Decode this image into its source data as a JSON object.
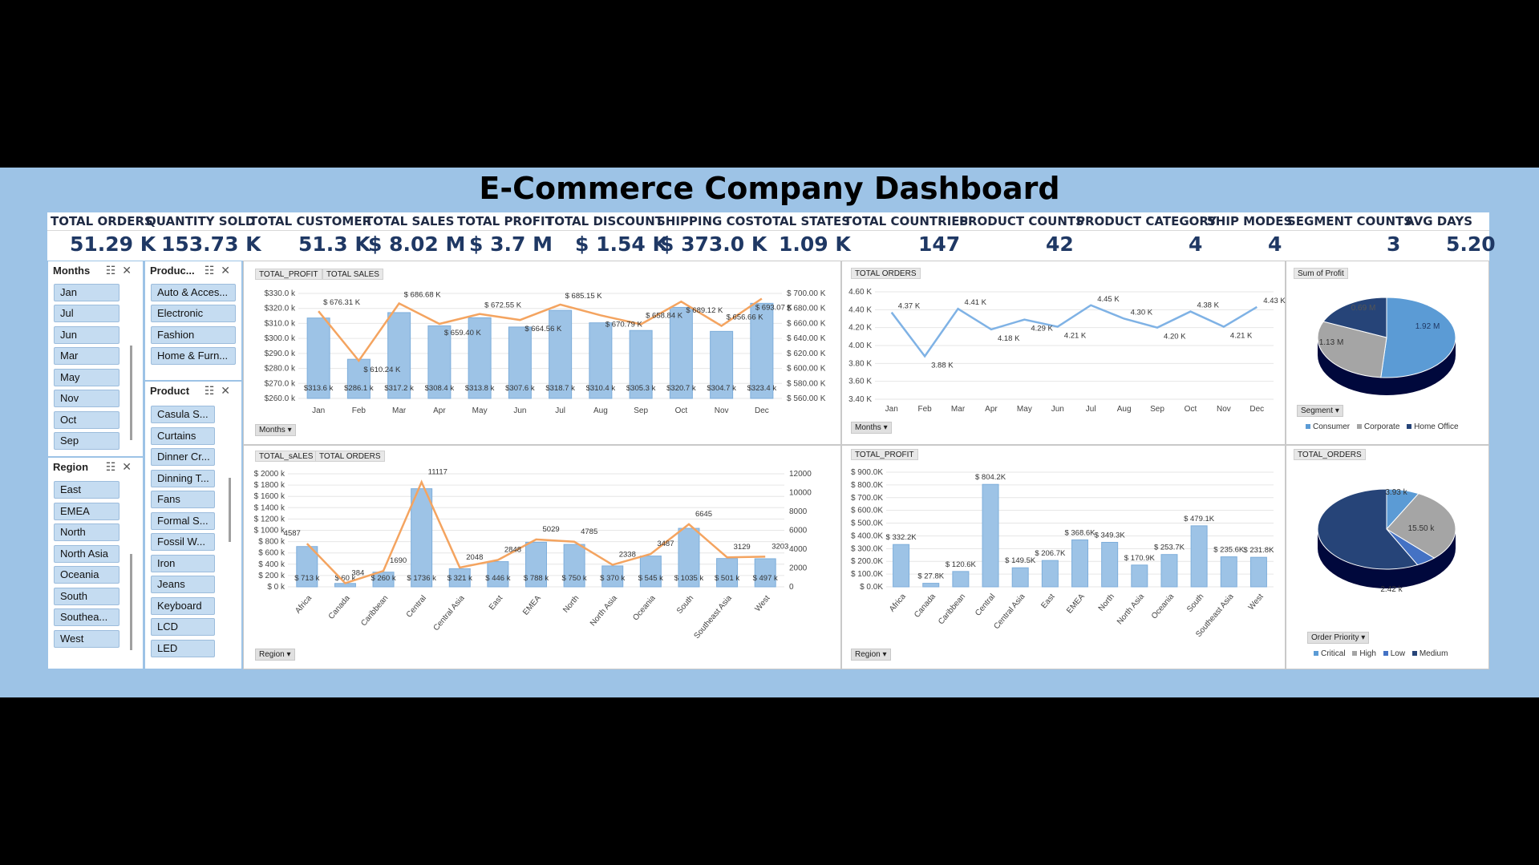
{
  "title": "E-Commerce Company Dashboard",
  "kpis": [
    {
      "label": "TOTAL ORDERS",
      "value": "51.29 K"
    },
    {
      "label": "QUANTITY SOLD",
      "value": "153.73 K"
    },
    {
      "label": "TOTAL CUSTOMER",
      "value": "51.3 K"
    },
    {
      "label": "TOTAL SALES",
      "value": "$ 8.02 M"
    },
    {
      "label": "TOTAL PROFIT",
      "value": "$ 3.7 M"
    },
    {
      "label": "TOTAL DISCOUNT",
      "value": "$ 1.54 K"
    },
    {
      "label": "SHIPPING COST",
      "value": "$ 373.0 K"
    },
    {
      "label": "TOTAL STATES",
      "value": "1.09 K"
    },
    {
      "label": "TOTAL COUNTRIES",
      "value": "147"
    },
    {
      "label": "PRODUCT COUNTS",
      "value": "42"
    },
    {
      "label": "PRODUCT CATEGORY",
      "value": "4"
    },
    {
      "label": "SHIP MODES",
      "value": "4"
    },
    {
      "label": "SEGMENT COUNTS",
      "value": "3"
    },
    {
      "label": "AVG DAYS",
      "value": "5.20"
    }
  ],
  "slicers": {
    "months": {
      "title": "Months",
      "items": [
        "Jan",
        "Jul",
        "Jun",
        "Mar",
        "May",
        "Nov",
        "Oct",
        "Sep"
      ]
    },
    "region": {
      "title": "Region",
      "items": [
        "East",
        "EMEA",
        "North",
        "North Asia",
        "Oceania",
        "South",
        "Southea...",
        "West"
      ]
    },
    "product_category": {
      "title": "Produc...",
      "items": [
        "Auto & Acces...",
        "Electronic",
        "Fashion",
        "Home & Furn..."
      ]
    },
    "product": {
      "title": "Product",
      "items": [
        "Casula S...",
        "Curtains",
        "Dinner Cr...",
        "Dinning T...",
        "Fans",
        "Formal S...",
        "Fossil W...",
        "Iron",
        "Jeans",
        "Keyboard",
        "LCD",
        "LED"
      ]
    }
  },
  "chart_data": [
    {
      "type": "bar",
      "field_buttons": [
        "TOTAL_PROFIT",
        "TOTAL SALES"
      ],
      "axis_button": "Months",
      "categories": [
        "Jan",
        "Feb",
        "Mar",
        "Apr",
        "May",
        "Jun",
        "Jul",
        "Aug",
        "Sep",
        "Oct",
        "Nov",
        "Dec"
      ],
      "series": [
        {
          "name": "TOTAL_PROFIT",
          "type": "bar",
          "values": [
            313.6,
            286.1,
            317.2,
            308.4,
            313.8,
            307.6,
            318.7,
            310.4,
            305.3,
            320.7,
            304.7,
            323.4
          ],
          "labels": [
            "$313.6 k",
            "$286.1 k",
            "$317.2 k",
            "$308.4 k",
            "$313.8 k",
            "$307.6 k",
            "$318.7 k",
            "$310.4 k",
            "$305.3 k",
            "$320.7 k",
            "$304.7 k",
            "$323.4 k"
          ]
        },
        {
          "name": "TOTAL SALES",
          "type": "line",
          "values": [
            676.31,
            610.24,
            686.68,
            659.4,
            672.55,
            664.56,
            685.15,
            670.79,
            658.84,
            689.12,
            656.66,
            693.07
          ],
          "labels": [
            "$ 676.31 K",
            "$ 610.24 K",
            "$ 686.68 K",
            "$ 659.40 K",
            "$ 672.55 K",
            "$ 664.56 K",
            "$ 685.15 K",
            "$ 670.79 K",
            "$ 658.84 K",
            "$ 689.12 K",
            "$ 656.66 K",
            "$ 693.07 K"
          ]
        }
      ],
      "ylim": [
        260,
        330
      ],
      "yticks": [
        "$260.0 k",
        "$270.0 k",
        "$280.0 k",
        "$290.0 k",
        "$300.0 k",
        "$310.0 k",
        "$320.0 k",
        "$330.0 k"
      ],
      "y2lim": [
        560,
        700
      ],
      "y2ticks": [
        "$ 560.00 K",
        "$ 580.00 K",
        "$ 600.00 K",
        "$ 620.00 K",
        "$ 640.00 K",
        "$ 660.00 K",
        "$ 680.00 K",
        "$ 700.00 K"
      ]
    },
    {
      "type": "line",
      "field_buttons": [
        "TOTAL ORDERS"
      ],
      "axis_button": "Months",
      "categories": [
        "Jan",
        "Feb",
        "Mar",
        "Apr",
        "May",
        "Jun",
        "Jul",
        "Aug",
        "Sep",
        "Oct",
        "Nov",
        "Dec"
      ],
      "series": [
        {
          "name": "TOTAL ORDERS",
          "values": [
            4.37,
            3.88,
            4.41,
            4.18,
            4.29,
            4.21,
            4.45,
            4.3,
            4.2,
            4.38,
            4.21,
            4.43
          ],
          "labels": [
            "4.37 K",
            "3.88 K",
            "4.41 K",
            "4.18 K",
            "4.29 K",
            "4.21 K",
            "4.45 K",
            "4.30 K",
            "4.20 K",
            "4.38 K",
            "4.21 K",
            "4.43 K"
          ]
        }
      ],
      "ylim": [
        3.4,
        4.6
      ],
      "yticks": [
        "3.40 K",
        "3.60 K",
        "3.80 K",
        "4.00 K",
        "4.20 K",
        "4.40 K",
        "4.60 K"
      ]
    },
    {
      "type": "pie",
      "field_buttons": [
        "Sum of Profit"
      ],
      "axis_button": "Segment",
      "categories": [
        "Consumer",
        "Corporate",
        "Home Office"
      ],
      "values": [
        1.92,
        1.13,
        0.69
      ],
      "labels": [
        "1.92 M",
        "1.13 M",
        "0.69 M"
      ],
      "colors": [
        "#5b9bd5",
        "#a5a5a5",
        "#264478"
      ]
    },
    {
      "type": "bar",
      "field_buttons": [
        "TOTAL_sALES",
        "TOTAL ORDERS"
      ],
      "axis_button": "Region",
      "categories": [
        "Africa",
        "Canada",
        "Caribbean",
        "Central",
        "Central Asia",
        "East",
        "EMEA",
        "North",
        "North Asia",
        "Oceania",
        "South",
        "Southeast Asia",
        "West"
      ],
      "series": [
        {
          "name": "TOTAL_sALES",
          "type": "bar",
          "values": [
            713,
            60,
            260,
            1736,
            321,
            446,
            788,
            750,
            370,
            545,
            1035,
            501,
            497
          ],
          "labels": [
            "$ 713 k",
            "$ 60 k",
            "$ 260 k",
            "$ 1736 k",
            "$ 321 k",
            "$ 446 k",
            "$ 788 k",
            "$ 750 k",
            "$ 370 k",
            "$ 545 k",
            "$ 1035 k",
            "$ 501 k",
            "$ 497 k"
          ]
        },
        {
          "name": "TOTAL ORDERS",
          "type": "line",
          "values": [
            4587,
            384,
            1690,
            11117,
            2048,
            2848,
            5029,
            4785,
            2338,
            3487,
            6645,
            3129,
            3203
          ],
          "labels": [
            "4587",
            "384",
            "1690",
            "11117",
            "2048",
            "2848",
            "5029",
            "4785",
            "2338",
            "3487",
            "6645",
            "3129",
            "3203"
          ]
        }
      ],
      "ylim": [
        0,
        2000
      ],
      "yticks": [
        "$ 0 k",
        "$ 200 k",
        "$ 400 k",
        "$ 600 k",
        "$ 800 k",
        "$ 1000 k",
        "$ 1200 k",
        "$ 1400 k",
        "$ 1600 k",
        "$ 1800 k",
        "$ 2000 k"
      ],
      "y2lim": [
        0,
        12000
      ],
      "y2ticks": [
        "0",
        "2000",
        "4000",
        "6000",
        "8000",
        "10000",
        "12000"
      ]
    },
    {
      "type": "bar",
      "field_buttons": [
        "TOTAL_PROFIT"
      ],
      "axis_button": "Region",
      "categories": [
        "Africa",
        "Canada",
        "Caribbean",
        "Central",
        "Central Asia",
        "East",
        "EMEA",
        "North",
        "North Asia",
        "Oceania",
        "South",
        "Southeast Asia",
        "West"
      ],
      "series": [
        {
          "name": "TOTAL_PROFIT",
          "values": [
            332.2,
            27.8,
            120.6,
            804.2,
            149.5,
            206.7,
            368.6,
            349.3,
            170.9,
            253.7,
            479.1,
            235.6,
            231.8
          ],
          "labels": [
            "$ 332.2K",
            "$ 27.8K",
            "$ 120.6K",
            "$ 804.2K",
            "$ 149.5K",
            "$ 206.7K",
            "$ 368.6K",
            "$ 349.3K",
            "$ 170.9K",
            "$ 253.7K",
            "$ 479.1K",
            "$ 235.6K",
            "$ 231.8K"
          ]
        }
      ],
      "ylim": [
        0,
        900
      ],
      "yticks": [
        "$ 0.0K",
        "$ 100.0K",
        "$ 200.0K",
        "$ 300.0K",
        "$ 400.0K",
        "$ 500.0K",
        "$ 600.0K",
        "$ 700.0K",
        "$ 800.0K",
        "$ 900.0K"
      ]
    },
    {
      "type": "pie",
      "field_buttons": [
        "TOTAL_ORDERS"
      ],
      "axis_button": "Order Priority",
      "categories": [
        "Critical",
        "High",
        "Low",
        "Medium"
      ],
      "values": [
        3.93,
        15.5,
        2.42,
        29.44
      ],
      "labels": [
        "3.93 k",
        "15.50 k",
        "2.42 k",
        ""
      ],
      "colors": [
        "#5b9bd5",
        "#a5a5a5",
        "#4472c4",
        "#264478"
      ]
    }
  ]
}
